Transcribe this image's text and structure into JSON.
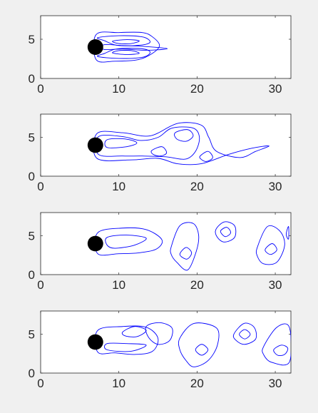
{
  "chart_data": [
    {
      "type": "contour",
      "panel": 1,
      "xlim": [
        0,
        32
      ],
      "ylim": [
        0,
        8
      ],
      "x_ticks": [
        0,
        10,
        20,
        30
      ],
      "x_tick_labels": [
        "0",
        "10",
        "20",
        "30"
      ],
      "y_ticks": [
        0,
        5
      ],
      "y_tick_labels": [
        "0",
        "5"
      ],
      "grid": false,
      "color": "#0000ff",
      "cylinder": {
        "x": 7,
        "y": 4,
        "r": 1
      },
      "contours": [
        {
          "points": [
            [
              7.1,
              5.6
            ],
            [
              10,
              5.85
            ],
            [
              13,
              5.85
            ],
            [
              14.3,
              5.3
            ],
            [
              15.2,
              4.2
            ],
            [
              14.3,
              3.2
            ],
            [
              12.5,
              2.4
            ],
            [
              9.5,
              2.2
            ],
            [
              7.1,
              2.4
            ]
          ]
        },
        {
          "points": [
            [
              7.3,
              5.2
            ],
            [
              10,
              5.45
            ],
            [
              13,
              5.3
            ],
            [
              14,
              4.7
            ],
            [
              13.2,
              4.3
            ],
            [
              10.8,
              4.15
            ],
            [
              9.4,
              4.3
            ],
            [
              8.2,
              4.8
            ]
          ]
        },
        {
          "points": [
            [
              7.3,
              2.8
            ],
            [
              10,
              2.55
            ],
            [
              13,
              2.7
            ],
            [
              14,
              3.3
            ],
            [
              13.2,
              3.75
            ],
            [
              10.8,
              3.85
            ],
            [
              9.4,
              3.7
            ],
            [
              8.2,
              3.2
            ]
          ]
        },
        {
          "points": [
            [
              9.2,
              4.75
            ],
            [
              11,
              4.95
            ],
            [
              12.6,
              4.8
            ],
            [
              11.6,
              4.45
            ],
            [
              10,
              4.45
            ]
          ]
        },
        {
          "points": [
            [
              9.2,
              3.25
            ],
            [
              11,
              3.05
            ],
            [
              12.6,
              3.2
            ],
            [
              11.6,
              3.55
            ],
            [
              10,
              3.55
            ]
          ]
        },
        {
          "points": [
            [
              8.1,
              4.3
            ],
            [
              10.5,
              4.2
            ],
            [
              13,
              4.1
            ],
            [
              15,
              3.95
            ],
            [
              16.2,
              3.8
            ],
            [
              15,
              3.65
            ],
            [
              13,
              3.6
            ],
            [
              10.5,
              3.75
            ],
            [
              8.1,
              3.7
            ]
          ]
        }
      ]
    },
    {
      "type": "contour",
      "panel": 2,
      "xlim": [
        0,
        32
      ],
      "ylim": [
        0,
        8
      ],
      "x_ticks": [
        0,
        10,
        20,
        30
      ],
      "x_tick_labels": [
        "0",
        "10",
        "20",
        "30"
      ],
      "y_ticks": [
        0,
        5
      ],
      "y_tick_labels": [
        "0",
        "5"
      ],
      "grid": false,
      "color": "#0000ff",
      "cylinder": {
        "x": 7,
        "y": 4,
        "r": 1
      },
      "contours": [
        {
          "points": [
            [
              7.2,
              5.5
            ],
            [
              10.5,
              5.6
            ],
            [
              14,
              5.2
            ],
            [
              17.5,
              6.8
            ],
            [
              20.5,
              6.6
            ],
            [
              21.5,
              5
            ],
            [
              22.5,
              3.2
            ],
            [
              25.5,
              2.4
            ],
            [
              27.5,
              3.2
            ],
            [
              29.2,
              3.9
            ],
            [
              27,
              3.6
            ],
            [
              24,
              2.8
            ],
            [
              20.5,
              1.6
            ],
            [
              17.5,
              1.6
            ],
            [
              15,
              2.3
            ],
            [
              11.5,
              2.1
            ],
            [
              7.2,
              2.3
            ]
          ]
        },
        {
          "points": [
            [
              7.4,
              5.1
            ],
            [
              10.5,
              5.1
            ],
            [
              12.8,
              4.6
            ],
            [
              15,
              5
            ],
            [
              16.8,
              6.2
            ],
            [
              19.5,
              6.2
            ],
            [
              20.3,
              5
            ],
            [
              19.8,
              3.2
            ],
            [
              18.5,
              2.2
            ],
            [
              16,
              2.5
            ],
            [
              13,
              2.6
            ],
            [
              10.5,
              2.6
            ],
            [
              7.4,
              2.8
            ]
          ]
        },
        {
          "points": [
            [
              8.5,
              4.7
            ],
            [
              10.8,
              4.8
            ],
            [
              12.3,
              4.3
            ],
            [
              11,
              3.8
            ],
            [
              8.5,
              3.7
            ]
          ]
        },
        {
          "points": [
            [
              17.2,
              5.6
            ],
            [
              18.8,
              6
            ],
            [
              19.5,
              5.2
            ],
            [
              18.6,
              4.5
            ],
            [
              17.4,
              4.8
            ]
          ]
        },
        {
          "points": [
            [
              14.2,
              3.3
            ],
            [
              15.5,
              3.8
            ],
            [
              16.1,
              3
            ],
            [
              15.3,
              2.6
            ],
            [
              14.4,
              2.8
            ]
          ]
        },
        {
          "points": [
            [
              20.4,
              2.6
            ],
            [
              21.4,
              3.2
            ],
            [
              22,
              2.4
            ],
            [
              21.2,
              1.9
            ],
            [
              20.5,
              2.2
            ]
          ]
        }
      ]
    },
    {
      "type": "contour",
      "panel": 3,
      "xlim": [
        0,
        32
      ],
      "ylim": [
        0,
        8
      ],
      "x_ticks": [
        0,
        10,
        20,
        30
      ],
      "x_tick_labels": [
        "0",
        "10",
        "20",
        "30"
      ],
      "y_ticks": [
        0,
        5
      ],
      "y_tick_labels": [
        "0",
        "5"
      ],
      "grid": false,
      "color": "#0000ff",
      "cylinder": {
        "x": 7,
        "y": 4,
        "r": 1
      },
      "contours": [
        {
          "points": [
            [
              7.3,
              5.4
            ],
            [
              10.5,
              6
            ],
            [
              13.5,
              5.8
            ],
            [
              15.5,
              4.5
            ],
            [
              14.8,
              3.3
            ],
            [
              12.5,
              2.8
            ],
            [
              10,
              2.7
            ],
            [
              7.3,
              2.7
            ]
          ]
        },
        {
          "points": [
            [
              8.5,
              4.8
            ],
            [
              11,
              5.1
            ],
            [
              13.5,
              4.7
            ],
            [
              12,
              3.8
            ],
            [
              9.5,
              3.4
            ],
            [
              8.5,
              3.8
            ]
          ]
        },
        {
          "points": [
            [
              16.7,
              3.6
            ],
            [
              17.8,
              6.3
            ],
            [
              19.5,
              6.6
            ],
            [
              20.2,
              5.1
            ],
            [
              19.9,
              3
            ],
            [
              18.8,
              0.6
            ],
            [
              17.4,
              1.6
            ],
            [
              16.7,
              2.6
            ]
          ]
        },
        {
          "points": [
            [
              17.8,
              2.6
            ],
            [
              18.6,
              3.5
            ],
            [
              19.3,
              2.8
            ],
            [
              18.7,
              2
            ]
          ]
        },
        {
          "points": [
            [
              22.4,
              5.8
            ],
            [
              23.5,
              6.8
            ],
            [
              24.8,
              6.3
            ],
            [
              24.8,
              4.8
            ],
            [
              23.5,
              4.2
            ],
            [
              22.6,
              4.8
            ]
          ]
        },
        {
          "points": [
            [
              23,
              5.6
            ],
            [
              23.8,
              6.1
            ],
            [
              24.3,
              5.4
            ],
            [
              23.6,
              4.9
            ]
          ]
        },
        {
          "points": [
            [
              27.7,
              3.5
            ],
            [
              29,
              6.2
            ],
            [
              30.6,
              5.6
            ],
            [
              31.2,
              3.8
            ],
            [
              30.2,
              1.6
            ],
            [
              28.5,
              1.4
            ],
            [
              27.7,
              2.4
            ]
          ]
        },
        {
          "points": [
            [
              28.7,
              3.2
            ],
            [
              29.6,
              4
            ],
            [
              30.2,
              3.2
            ],
            [
              29.4,
              2.6
            ]
          ]
        },
        {
          "points": [
            [
              31.7,
              6.2
            ],
            [
              31.4,
              5.2
            ],
            [
              31.7,
              4.6
            ]
          ]
        }
      ]
    },
    {
      "type": "contour",
      "panel": 4,
      "xlim": [
        0,
        32
      ],
      "ylim": [
        0,
        8
      ],
      "x_ticks": [
        0,
        10,
        20,
        30
      ],
      "x_tick_labels": [
        "0",
        "10",
        "20",
        "30"
      ],
      "y_ticks": [
        0,
        5
      ],
      "y_tick_labels": [
        "0",
        "5"
      ],
      "grid": false,
      "color": "#0000ff",
      "cylinder": {
        "x": 7,
        "y": 4,
        "r": 1
      },
      "contours": [
        {
          "points": [
            [
              7.3,
              5.5
            ],
            [
              10.5,
              6
            ],
            [
              13.5,
              5.9
            ],
            [
              15,
              4.5
            ],
            [
              14.3,
              2.8
            ],
            [
              12,
              2.4
            ],
            [
              9.5,
              2.6
            ],
            [
              7.3,
              2.7
            ]
          ]
        },
        {
          "points": [
            [
              10.5,
              5.3
            ],
            [
              12,
              6
            ],
            [
              13.5,
              5.5
            ],
            [
              12.3,
              4.7
            ],
            [
              10.8,
              4.8
            ]
          ]
        },
        {
          "points": [
            [
              13.5,
              6
            ],
            [
              15.2,
              6.5
            ],
            [
              16.8,
              5.8
            ],
            [
              16.5,
              4.2
            ],
            [
              15,
              3.7
            ],
            [
              13.8,
              4.6
            ]
          ]
        },
        {
          "points": [
            [
              8.5,
              3.8
            ],
            [
              11,
              3.8
            ],
            [
              13.5,
              3.6
            ],
            [
              11.5,
              2.8
            ],
            [
              8.5,
              3
            ]
          ]
        },
        {
          "points": [
            [
              17.8,
              4.5
            ],
            [
              19.6,
              6.4
            ],
            [
              22.5,
              5.8
            ],
            [
              22.6,
              3.6
            ],
            [
              21.4,
              1.6
            ],
            [
              19.6,
              0.8
            ],
            [
              18.6,
              1.6
            ],
            [
              17.8,
              3
            ]
          ]
        },
        {
          "points": [
            [
              19.8,
              3
            ],
            [
              20.6,
              3.7
            ],
            [
              21.4,
              3
            ],
            [
              20.6,
              2.3
            ]
          ]
        },
        {
          "points": [
            [
              24.7,
              5
            ],
            [
              26,
              6.4
            ],
            [
              27.3,
              5.9
            ],
            [
              27.5,
              4.4
            ],
            [
              26.1,
              3.7
            ],
            [
              25,
              4.2
            ]
          ]
        },
        {
          "points": [
            [
              25.4,
              5
            ],
            [
              26.1,
              5.6
            ],
            [
              26.8,
              5
            ],
            [
              26.1,
              4.4
            ]
          ]
        },
        {
          "points": [
            [
              28.5,
              3.4
            ],
            [
              30.2,
              5.9
            ],
            [
              31.8,
              5.9
            ],
            [
              31.8,
              1.4
            ],
            [
              29.5,
              1.4
            ],
            [
              28.5,
              2.4
            ]
          ]
        },
        {
          "points": [
            [
              29.8,
              3
            ],
            [
              30.8,
              3.6
            ],
            [
              31.6,
              3.2
            ],
            [
              31.2,
              2.4
            ],
            [
              30.3,
              2.3
            ]
          ]
        }
      ]
    }
  ]
}
